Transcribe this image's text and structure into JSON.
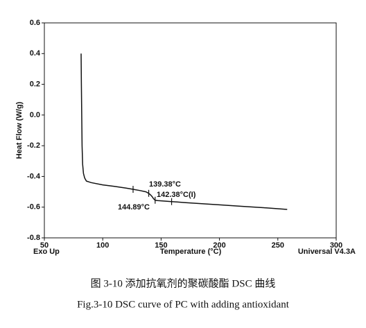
{
  "chart_data": {
    "type": "line",
    "xlabel": "Temperature (°C)",
    "ylabel": "Heat Flow (W/g)",
    "corner_left": "Exo Up",
    "corner_right": "Universal V4.3A",
    "caption_cn": "图 3-10 添加抗氧剂的聚碳酸酯 DSC 曲线",
    "caption_en": "Fig.3-10 DSC curve of PC with adding antioxidant",
    "series": [
      {
        "name": "DSC",
        "color": "#111111",
        "x": [
          81.5,
          81.7,
          82,
          82.3,
          82.8,
          83.5,
          84.5,
          86,
          90,
          100,
          110,
          120,
          126,
          132,
          137,
          139.4,
          141,
          142.4,
          143.5,
          144.9,
          147,
          152,
          159,
          170,
          185,
          200,
          220,
          240,
          258
        ],
        "values": [
          0.4,
          0.2,
          0.0,
          -0.2,
          -0.32,
          -0.38,
          -0.41,
          -0.43,
          -0.44,
          -0.455,
          -0.465,
          -0.476,
          -0.484,
          -0.492,
          -0.5,
          -0.51,
          -0.52,
          -0.532,
          -0.545,
          -0.555,
          -0.557,
          -0.56,
          -0.564,
          -0.57,
          -0.578,
          -0.585,
          -0.595,
          -0.605,
          -0.615
        ]
      }
    ],
    "marker_x": [
      126,
      139.4,
      144.9,
      159
    ],
    "marker_y": [
      -0.484,
      -0.51,
      -0.555,
      -0.564
    ],
    "annotations": [
      "139.38°C",
      "142.38°C(I)",
      "144.89°C"
    ],
    "xlim": [
      50,
      300
    ],
    "xticks": [
      50,
      100,
      150,
      200,
      250,
      300
    ],
    "ylim": [
      -0.8,
      0.6
    ],
    "yticks": [
      -0.8,
      -0.6,
      -0.4,
      -0.2,
      {
        "value": 0,
        "label": "0.0"
      },
      0.2,
      0.4,
      0.6
    ]
  }
}
